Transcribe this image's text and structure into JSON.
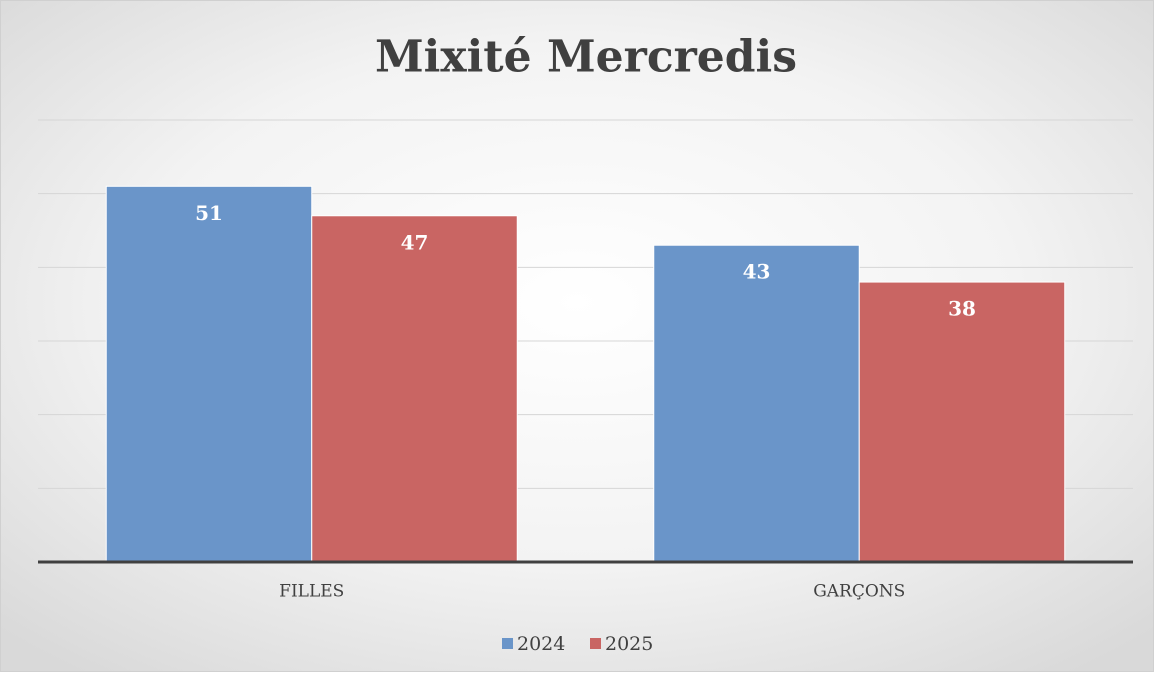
{
  "chart_data": {
    "type": "bar",
    "title": "Mixité Mercredis",
    "categories": [
      "FILLES",
      "GARÇONS"
    ],
    "series": [
      {
        "name": "2024",
        "color": "#6a95c9",
        "values": [
          51,
          43
        ]
      },
      {
        "name": "2025",
        "color": "#c96563",
        "values": [
          47,
          38
        ]
      }
    ],
    "ylim": [
      0,
      60
    ],
    "yticks": [
      0,
      10,
      20,
      30,
      40,
      50,
      60
    ],
    "grid": true,
    "legend": "bottom"
  }
}
